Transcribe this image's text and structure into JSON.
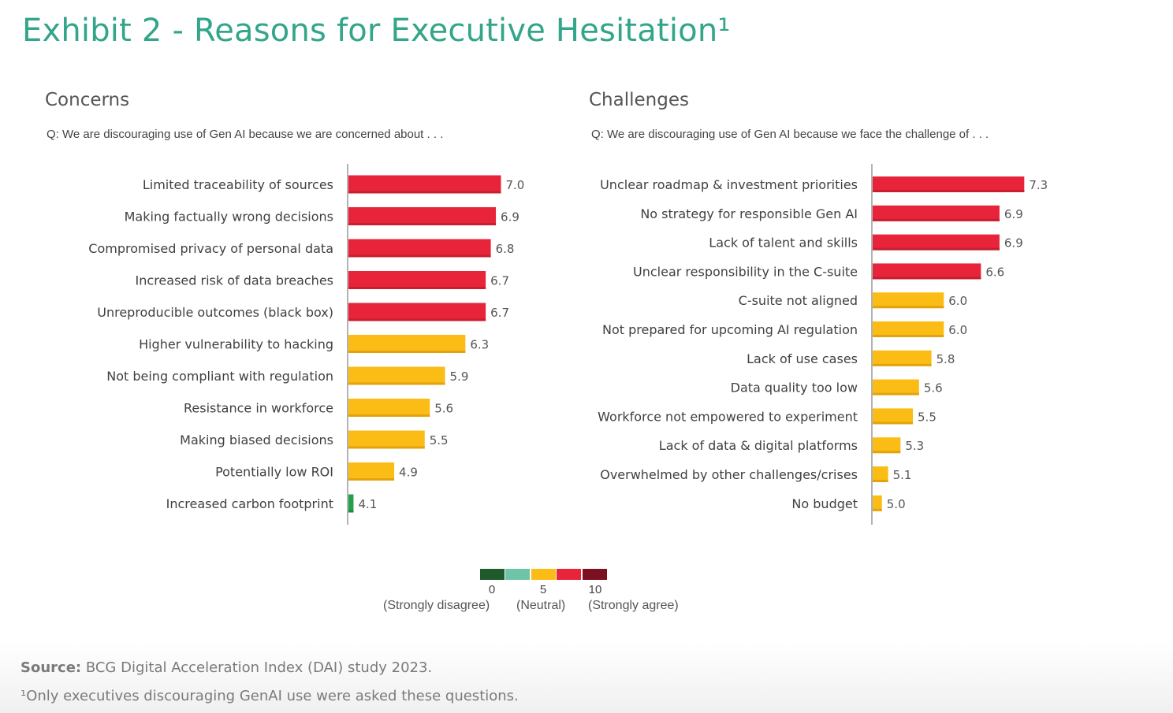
{
  "title": "Exhibit 2 - Reasons for Executive Hesitation¹",
  "colors": {
    "title": "#32a58a",
    "red": "#e8243a",
    "yellow": "#fbbc15",
    "green": "#24a04d",
    "legend": [
      "#1f5a2a",
      "#6fc4a7",
      "#fbbc15",
      "#e8243a",
      "#7a1020"
    ]
  },
  "chart_data": [
    {
      "type": "bar",
      "orientation": "horizontal",
      "title": "Concerns",
      "subtitle": "Q: We are discouraging use of Gen AI because we are concerned about . . .",
      "categories": [
        "Limited traceability of sources",
        "Making factually wrong decisions",
        "Compromised privacy of personal data",
        "Increased risk of data breaches",
        "Unreproducible outcomes (black box)",
        "Higher vulnerability to hacking",
        "Not being compliant with regulation",
        "Resistance in workforce",
        "Making biased decisions",
        "Potentially low ROI",
        "Increased carbon footprint"
      ],
      "values": [
        7.0,
        6.9,
        6.8,
        6.7,
        6.7,
        6.3,
        5.9,
        5.6,
        5.5,
        4.9,
        4.1
      ],
      "value_labels": [
        "7.0",
        "6.9",
        "6.8",
        "6.7",
        "6.7",
        "6.3",
        "5.9",
        "5.6",
        "5.5",
        "4.9",
        "4.1"
      ],
      "bar_colors": [
        "red",
        "red",
        "red",
        "red",
        "red",
        "yellow",
        "yellow",
        "yellow",
        "yellow",
        "yellow",
        "green"
      ],
      "xlim": [
        4,
        7.3
      ]
    },
    {
      "type": "bar",
      "orientation": "horizontal",
      "title": "Challenges",
      "subtitle": "Q: We are discouraging use of Gen AI because we face the challenge of . . .",
      "categories": [
        "Unclear roadmap & investment priorities",
        "No strategy for responsible Gen AI",
        "Lack of talent and skills",
        "Unclear responsibility in the C-suite",
        "C-suite not aligned",
        "Not prepared for upcoming AI regulation",
        "Lack of use cases",
        "Data quality too low",
        "Workforce not empowered to experiment",
        "Lack of data & digital platforms",
        "Overwhelmed by other challenges/crises",
        "No budget"
      ],
      "values": [
        7.3,
        6.9,
        6.9,
        6.6,
        6.0,
        6.0,
        5.8,
        5.6,
        5.5,
        5.3,
        5.1,
        5.0
      ],
      "value_labels": [
        "7.3",
        "6.9",
        "6.9",
        "6.6",
        "6.0",
        "6.0",
        "5.8",
        "5.6",
        "5.5",
        "5.3",
        "5.1",
        "5.0"
      ],
      "bar_colors": [
        "red",
        "red",
        "red",
        "red",
        "yellow",
        "yellow",
        "yellow",
        "yellow",
        "yellow",
        "yellow",
        "yellow",
        "yellow"
      ],
      "xlim": [
        4.9,
        7.3
      ]
    }
  ],
  "legend": {
    "ticks": [
      "0",
      "5",
      "10"
    ],
    "descriptions": [
      "(Strongly disagree)",
      "(Neutral)",
      "(Strongly agree)"
    ]
  },
  "footer": {
    "source_label": "Source:",
    "source_text": " BCG Digital Acceleration Index (DAI) study 2023.",
    "footnote": "¹Only executives discouraging GenAI use were asked these questions."
  }
}
